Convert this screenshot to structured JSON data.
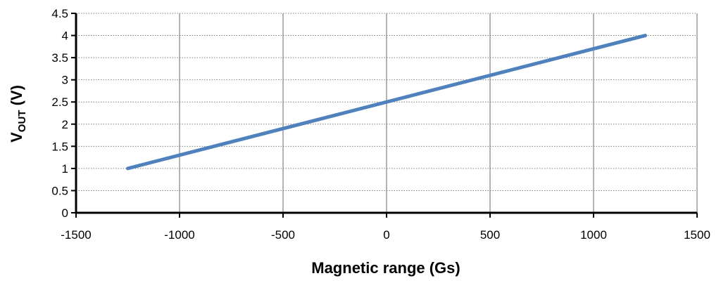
{
  "chart_data": {
    "type": "line",
    "xlabel": "Magnetic range (Gs)",
    "ylabel_main": "V",
    "ylabel_sub": "OUT",
    "ylabel_unit": " (V)",
    "xlim": [
      -1500,
      1500
    ],
    "ylim": [
      0,
      4.5
    ],
    "x_ticks": [
      -1500,
      -1000,
      -500,
      0,
      500,
      1000,
      1500
    ],
    "y_ticks": [
      0,
      0.5,
      1,
      1.5,
      2,
      2.5,
      3,
      3.5,
      4,
      4.5
    ],
    "grid": {
      "vertical": "solid",
      "horizontal": "dotted"
    },
    "legend": "none",
    "series": [
      {
        "x": [
          -1250,
          1250
        ],
        "y": [
          1,
          4
        ],
        "color": "#4F81BD"
      }
    ]
  }
}
